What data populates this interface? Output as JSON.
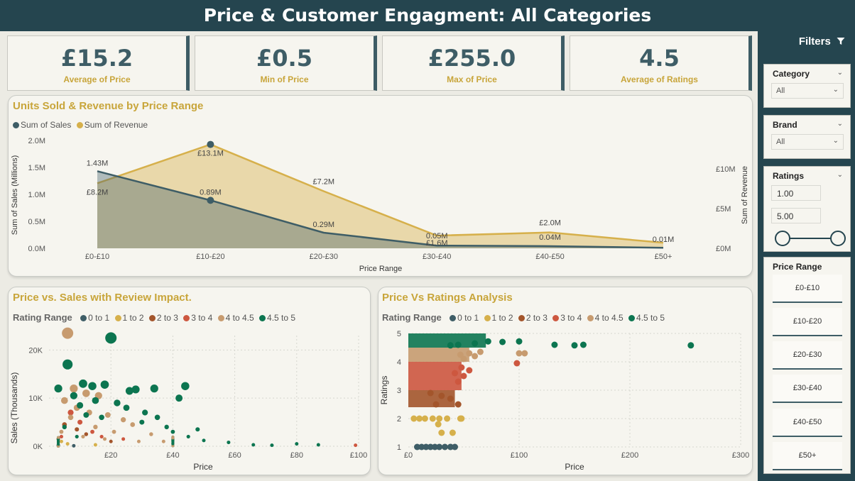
{
  "header": {
    "title": "Price & Customer Engagment: All Categories"
  },
  "kpis": [
    {
      "value": "£15.2",
      "label": "Average of Price"
    },
    {
      "value": "£0.5",
      "label": "Min of Price"
    },
    {
      "value": "£255.0",
      "label": "Max of Price"
    },
    {
      "value": "4.5",
      "label": "Average of Ratings"
    }
  ],
  "colors": {
    "sales": "#3e5d66",
    "revenue": "#d6b04b",
    "rating_0_1": "#3e5d66",
    "rating_1_2": "#d6b04b",
    "rating_2_3": "#a3552b",
    "rating_3_4": "#cd573f",
    "rating_4_45": "#c79b6f",
    "rating_45_5": "#0c7550"
  },
  "chart1": {
    "title": "Units Sold & Revenue by Price Range",
    "legend": [
      "Sum of Sales",
      "Sum of Revenue"
    ],
    "y_left_ticks": [
      "2.0M",
      "1.5M",
      "1.0M",
      "0.5M",
      "0.0M"
    ],
    "y_right_ticks": [
      "£10M",
      "£5M",
      "£0M"
    ],
    "xlabel": "Price Range",
    "ylabel_left": "Sum of Sales (Millions)",
    "ylabel_right": "Sum of Revenue"
  },
  "chart2": {
    "title": "Price vs. Sales with Review Impact.",
    "legend_title": "Rating Range",
    "legend": [
      "0 to 1",
      "1 to 2",
      "2 to 3",
      "3 to 4",
      "4 to 4.5",
      "4.5 to 5"
    ],
    "xlabel": "Price",
    "ylabel": "Sales (Thousands)",
    "x_ticks": [
      "£20",
      "£40",
      "£60",
      "£80",
      "£100"
    ],
    "y_ticks": [
      "20K",
      "10K",
      "0K"
    ]
  },
  "chart3": {
    "title": "Price Vs Ratings Analysis",
    "legend_title": "Rating Range",
    "legend": [
      "0 to 1",
      "1 to 2",
      "2 to 3",
      "3 to 4",
      "4 to 4.5",
      "4.5 to 5"
    ],
    "xlabel": "Price",
    "ylabel": "Ratings",
    "x_ticks": [
      "£0",
      "£100",
      "£200",
      "£300"
    ],
    "y_ticks": [
      "5",
      "4",
      "3",
      "2",
      "1"
    ]
  },
  "chart_data": [
    {
      "type": "area",
      "title": "Units Sold & Revenue by Price Range",
      "categories": [
        "£0-£10",
        "£10-£20",
        "£20-£30",
        "£30-£40",
        "£40-£50",
        "£50+"
      ],
      "series": [
        {
          "name": "Sum of Sales",
          "axis": "left",
          "values": [
            1.43,
            0.89,
            0.29,
            0.05,
            0.04,
            0.01
          ],
          "labels": [
            "1.43M",
            "0.89M",
            "0.29M",
            "0.05M",
            "0.04M",
            "0.01M"
          ]
        },
        {
          "name": "Sum of Revenue",
          "axis": "right",
          "values": [
            8.2,
            13.1,
            7.2,
            1.6,
            2.0,
            0.7
          ],
          "labels": [
            "£8.2M",
            "£13.1M",
            "£7.2M",
            "£1.6M",
            "£2.0M",
            ""
          ]
        }
      ],
      "ylim_left": [
        0,
        2.0
      ],
      "ylim_right": [
        0,
        13.6
      ],
      "xlabel": "Price Range",
      "ylabel": "Sum of Sales (Millions)"
    },
    {
      "type": "scatter",
      "title": "Price vs. Sales with Review Impact.",
      "xlabel": "Price",
      "ylabel": "Sales (Thousands)",
      "xlim": [
        0,
        100
      ],
      "ylim": [
        0,
        23
      ],
      "series": [
        {
          "name": "4.5 to 5",
          "points": [
            [
              20,
              22.5
            ],
            [
              6,
              17
            ],
            [
              11,
              13
            ],
            [
              14,
              12.5
            ],
            [
              18,
              12.8
            ],
            [
              26,
              11.5
            ],
            [
              28,
              11.8
            ],
            [
              34,
              12
            ],
            [
              44,
              12.5
            ],
            [
              42,
              10
            ],
            [
              8,
              10.5
            ],
            [
              15,
              9.5
            ],
            [
              22,
              9
            ],
            [
              10,
              8.5
            ],
            [
              25,
              8
            ],
            [
              31,
              7
            ],
            [
              35,
              6
            ],
            [
              12,
              6.5
            ],
            [
              17,
              6
            ],
            [
              38,
              4
            ],
            [
              48,
              3.5
            ],
            [
              45,
              2
            ],
            [
              50,
              1.2
            ],
            [
              58,
              0.8
            ],
            [
              66,
              0.3
            ],
            [
              72,
              0.2
            ],
            [
              80,
              0.5
            ],
            [
              87,
              0.3
            ],
            [
              30,
              5
            ],
            [
              40,
              3
            ],
            [
              5,
              4
            ],
            [
              9,
              2
            ],
            [
              3,
              12
            ]
          ]
        },
        {
          "name": "4 to 4.5",
          "points": [
            [
              6,
              23.5
            ],
            [
              8,
              12
            ],
            [
              12,
              11
            ],
            [
              16,
              10.5
            ],
            [
              5,
              9.5
            ],
            [
              9,
              8
            ],
            [
              13,
              7
            ],
            [
              19,
              6.5
            ],
            [
              24,
              5.5
            ],
            [
              27,
              4.5
            ],
            [
              7,
              6
            ],
            [
              15,
              4
            ],
            [
              21,
              3
            ],
            [
              33,
              2.5
            ],
            [
              4,
              3
            ],
            [
              11,
              2
            ],
            [
              18,
              1.5
            ],
            [
              29,
              1
            ],
            [
              37,
              1
            ]
          ]
        },
        {
          "name": "3 to 4",
          "points": [
            [
              7,
              7
            ],
            [
              10,
              5
            ],
            [
              14,
              3
            ],
            [
              17,
              2
            ],
            [
              24,
              1.5
            ],
            [
              4,
              2
            ],
            [
              99,
              0.2
            ]
          ]
        },
        {
          "name": "2 to 3",
          "points": [
            [
              5,
              4.5
            ],
            [
              9,
              3.5
            ],
            [
              12,
              2.5
            ],
            [
              20,
              1
            ],
            [
              3,
              1.5
            ]
          ]
        },
        {
          "name": "1 to 2",
          "points": [
            [
              4,
              1
            ],
            [
              6,
              0.5
            ],
            [
              15,
              0.3
            ]
          ]
        },
        {
          "name": "0 to 1",
          "points": [
            [
              3,
              0.2
            ],
            [
              8,
              0.1
            ]
          ]
        }
      ]
    },
    {
      "type": "scatter",
      "title": "Price Vs Ratings Analysis",
      "xlabel": "Price",
      "ylabel": "Ratings",
      "xlim": [
        0,
        300
      ],
      "ylim": [
        1,
        5
      ],
      "series": [
        {
          "name": "4.5 to 5",
          "points": [
            [
              72,
              4.72
            ],
            [
              100,
              4.72
            ],
            [
              132,
              4.6
            ],
            [
              150,
              4.58
            ],
            [
              158,
              4.6
            ],
            [
              255,
              4.58
            ],
            [
              60,
              4.65
            ],
            [
              85,
              4.7
            ],
            [
              45,
              4.6
            ],
            [
              38,
              4.58
            ]
          ]
        },
        {
          "name": "4 to 4.5",
          "points": [
            [
              55,
              4.3
            ],
            [
              100,
              4.3
            ],
            [
              105,
              4.3
            ],
            [
              65,
              4.35
            ],
            [
              50,
              4.1
            ],
            [
              47,
              4.25
            ],
            [
              60,
              4.2
            ]
          ]
        },
        {
          "name": "3 to 4",
          "points": [
            [
              98,
              3.95
            ],
            [
              48,
              3.8
            ],
            [
              55,
              3.7
            ],
            [
              50,
              3.5
            ],
            [
              45,
              3.3
            ],
            [
              42,
              3.6
            ]
          ]
        },
        {
          "name": "2 to 3",
          "points": [
            [
              30,
              2.8
            ],
            [
              45,
              2.5
            ],
            [
              38,
              2.7
            ],
            [
              20,
              2.9
            ],
            [
              25,
              2.5
            ]
          ]
        },
        {
          "name": "1 to 2",
          "points": [
            [
              5,
              2
            ],
            [
              10,
              2
            ],
            [
              15,
              2
            ],
            [
              22,
              2
            ],
            [
              28,
              2
            ],
            [
              35,
              2
            ],
            [
              47,
              2
            ],
            [
              30,
              1.5
            ],
            [
              40,
              1.5
            ],
            [
              27,
              1.8
            ],
            [
              48,
              2
            ]
          ]
        },
        {
          "name": "0 to 1",
          "points": [
            [
              8,
              1
            ],
            [
              12,
              1
            ],
            [
              16,
              1
            ],
            [
              20,
              1
            ],
            [
              24,
              1
            ],
            [
              28,
              1
            ],
            [
              33,
              1
            ],
            [
              38,
              1
            ],
            [
              42,
              1
            ]
          ]
        }
      ]
    }
  ],
  "sidebar": {
    "title": "Filters",
    "category": {
      "label": "Category",
      "value": "All"
    },
    "brand": {
      "label": "Brand",
      "value": "All"
    },
    "ratings": {
      "label": "Ratings",
      "min": "1.00",
      "max": "5.00"
    },
    "price_range": {
      "label": "Price Range",
      "items": [
        "£0-£10",
        "£10-£20",
        "£20-£30",
        "£30-£40",
        "£40-£50",
        "£50+"
      ]
    }
  }
}
